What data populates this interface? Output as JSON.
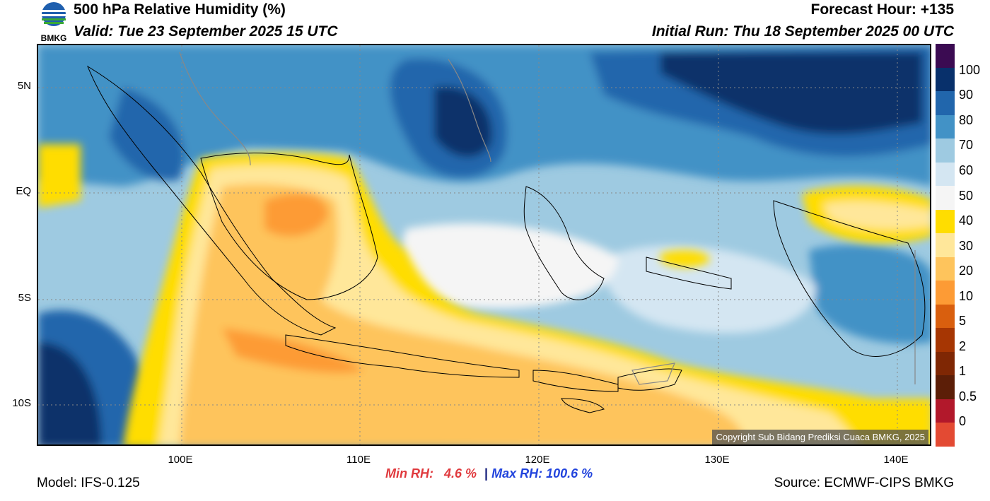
{
  "header": {
    "title": "500 hPa Relative Humidity (%)",
    "valid": "Valid: Tue 23 September 2025 15 UTC",
    "forecast_hour": "Forecast Hour: +135",
    "initial_run": "Initial Run: Thu 18 September 2025 00 UTC",
    "logo_text": "BMKG"
  },
  "map": {
    "lat_labels": [
      "5N",
      "EQ",
      "5S",
      "10S"
    ],
    "lon_labels": [
      "100E",
      "110E",
      "120E",
      "130E",
      "140E"
    ],
    "copyright": "Copyright Sub Bidang Prediksi Cuaca BMKG, 2025"
  },
  "colorbar": {
    "labels": [
      "100",
      "90",
      "80",
      "70",
      "60",
      "50",
      "40",
      "30",
      "20",
      "10",
      "5",
      "2",
      "1",
      "0.5",
      "0"
    ],
    "colors": [
      "#3b0b52",
      "#08306b",
      "#2166ac",
      "#4292c6",
      "#9ecae1",
      "#d4e6f2",
      "#f5f5f5",
      "#ffdd00",
      "#ffe79a",
      "#fec45c",
      "#fd9b35",
      "#d95f0e",
      "#a63603",
      "#7f2704",
      "#5c1e07",
      "#b2182b",
      "#e34a33"
    ]
  },
  "footer": {
    "model": "Model: IFS-0.125",
    "min_label": "Min RH:",
    "min_value": "4.6 %",
    "separator": "|",
    "max_label": "Max RH:",
    "max_value": "100.6 %",
    "source": "Source: ECMWF-CIPS BMKG"
  }
}
